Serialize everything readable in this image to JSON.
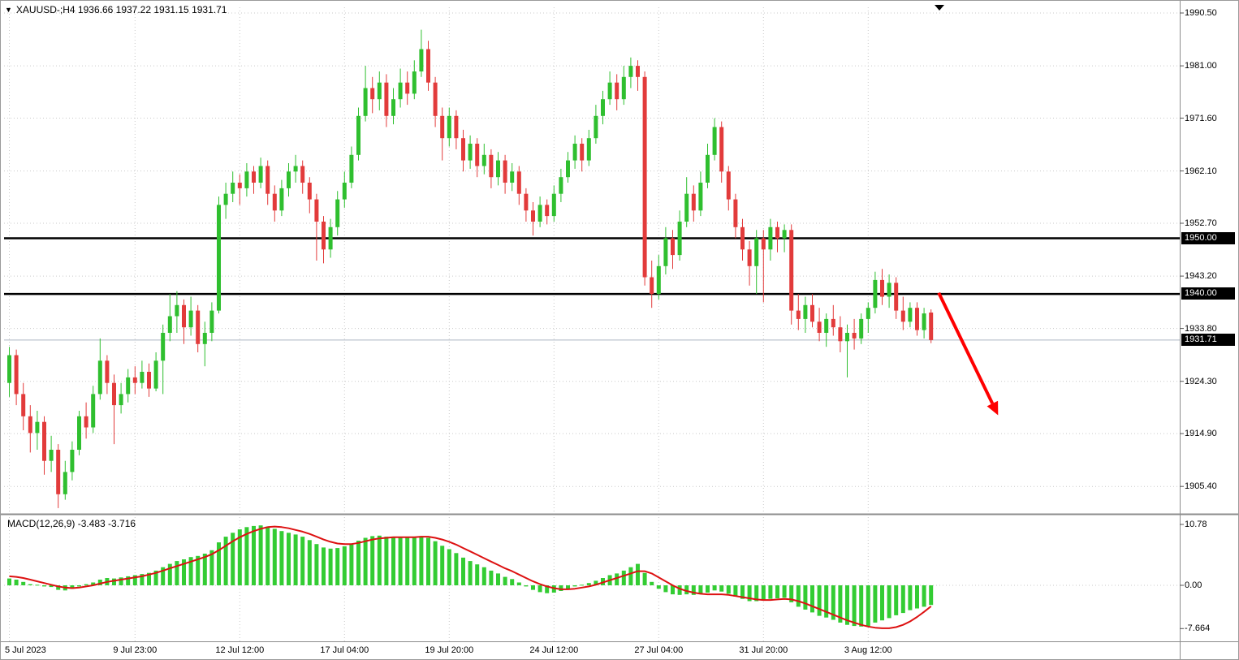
{
  "header": {
    "collapse_icon": "▼",
    "title": "XAUUSD-;H4 1936.66 1937.22 1931.15 1931.71"
  },
  "chart_data": {
    "type": "candlestick",
    "symbol": "XAUUSD-",
    "period": "H4",
    "ohlc_readout": {
      "open": "1936.66",
      "high": "1937.22",
      "low": "1931.15",
      "close": "1931.71"
    },
    "price_axis_ticks": [
      1990.5,
      1981.0,
      1971.6,
      1962.1,
      1952.7,
      1943.2,
      1933.8,
      1924.3,
      1914.9,
      1905.4
    ],
    "support_resistance_lines": [
      1950.0,
      1940.0
    ],
    "current_price": 1931.71,
    "time_axis_labels": [
      {
        "i": 0,
        "t": "5 Jul 2023"
      },
      {
        "i": 18,
        "t": "9 Jul 23:00"
      },
      {
        "i": 33,
        "t": "12 Jul 12:00"
      },
      {
        "i": 48,
        "t": "17 Jul 04:00"
      },
      {
        "i": 63,
        "t": "19 Jul 20:00"
      },
      {
        "i": 78,
        "t": "24 Jul 12:00"
      },
      {
        "i": 93,
        "t": "27 Jul 04:00"
      },
      {
        "i": 108,
        "t": "31 Jul 20:00"
      },
      {
        "i": 123,
        "t": "3 Aug 12:00"
      }
    ],
    "candles": [
      [
        1924,
        1930.5,
        1921.5,
        1929
      ],
      [
        1929,
        1930,
        1920,
        1922
      ],
      [
        1922,
        1924,
        1915.5,
        1918
      ],
      [
        1918,
        1920,
        1911.5,
        1915
      ],
      [
        1915,
        1919,
        1912,
        1917
      ],
      [
        1917,
        1918,
        1907.5,
        1910
      ],
      [
        1910,
        1914.5,
        1908,
        1912
      ],
      [
        1912,
        1913,
        1901.5,
        1904
      ],
      [
        1904,
        1910,
        1903,
        1908
      ],
      [
        1908,
        1913.5,
        1906.5,
        1912
      ],
      [
        1912,
        1919,
        1911,
        1918
      ],
      [
        1918,
        1920.5,
        1914,
        1916
      ],
      [
        1916,
        1923.5,
        1915,
        1922
      ],
      [
        1922,
        1932,
        1921,
        1928
      ],
      [
        1928,
        1929,
        1922,
        1924
      ],
      [
        1924,
        1925.5,
        1913,
        1920
      ],
      [
        1920,
        1924,
        1918.5,
        1922
      ],
      [
        1922,
        1926.5,
        1920.5,
        1925
      ],
      [
        1925,
        1927,
        1922,
        1924
      ],
      [
        1924,
        1928,
        1923,
        1926
      ],
      [
        1926,
        1927.5,
        1921.5,
        1923
      ],
      [
        1923,
        1929.5,
        1922.5,
        1928
      ],
      [
        1928,
        1934.5,
        1922,
        1933
      ],
      [
        1933,
        1940,
        1931.5,
        1936
      ],
      [
        1936,
        1940.5,
        1933,
        1938
      ],
      [
        1938,
        1939,
        1931,
        1934
      ],
      [
        1934,
        1939.5,
        1932.5,
        1937
      ],
      [
        1937,
        1938,
        1929.5,
        1931
      ],
      [
        1931,
        1935,
        1927,
        1933
      ],
      [
        1933,
        1938.5,
        1931.5,
        1937
      ],
      [
        1937,
        1957.5,
        1936.5,
        1956
      ],
      [
        1956,
        1960,
        1953.5,
        1958
      ],
      [
        1958,
        1962,
        1956.5,
        1960
      ],
      [
        1960,
        1961.5,
        1956,
        1959
      ],
      [
        1959,
        1963.5,
        1957.5,
        1962
      ],
      [
        1962,
        1963,
        1958,
        1960
      ],
      [
        1960,
        1964.5,
        1959,
        1963
      ],
      [
        1963,
        1964,
        1956,
        1958
      ],
      [
        1958,
        1959.5,
        1953,
        1955
      ],
      [
        1955,
        1960.5,
        1954,
        1959
      ],
      [
        1959,
        1963.5,
        1957.5,
        1962
      ],
      [
        1962,
        1965,
        1960,
        1963
      ],
      [
        1963,
        1964,
        1958,
        1960
      ],
      [
        1960,
        1961,
        1954.5,
        1957
      ],
      [
        1957,
        1958,
        1946,
        1953
      ],
      [
        1953,
        1954,
        1945.5,
        1948
      ],
      [
        1948,
        1953.5,
        1946.5,
        1952
      ],
      [
        1952,
        1958.5,
        1950.5,
        1957
      ],
      [
        1957,
        1962,
        1955.5,
        1960
      ],
      [
        1960,
        1966.5,
        1959,
        1965
      ],
      [
        1965,
        1973.5,
        1964,
        1972
      ],
      [
        1972,
        1981,
        1971,
        1977
      ],
      [
        1977,
        1979,
        1972.5,
        1975
      ],
      [
        1975,
        1980,
        1973,
        1978
      ],
      [
        1978,
        1979.5,
        1970,
        1972
      ],
      [
        1972,
        1977,
        1970.5,
        1975
      ],
      [
        1975,
        1980.5,
        1973.5,
        1978
      ],
      [
        1978,
        1980,
        1974,
        1976
      ],
      [
        1976,
        1982,
        1975,
        1980
      ],
      [
        1980,
        1987.5,
        1979,
        1984
      ],
      [
        1984,
        1985.5,
        1976.5,
        1978
      ],
      [
        1978,
        1979,
        1970,
        1972
      ],
      [
        1972,
        1973.5,
        1964,
        1968
      ],
      [
        1968,
        1973.5,
        1966.5,
        1972
      ],
      [
        1972,
        1973,
        1966,
        1968
      ],
      [
        1968,
        1969.5,
        1962,
        1964
      ],
      [
        1964,
        1968.5,
        1962.5,
        1967
      ],
      [
        1967,
        1968,
        1961,
        1963
      ],
      [
        1963,
        1967,
        1961.5,
        1965
      ],
      [
        1965,
        1966,
        1959,
        1961
      ],
      [
        1961,
        1965.5,
        1959.5,
        1964
      ],
      [
        1964,
        1965,
        1958,
        1960
      ],
      [
        1960,
        1963.5,
        1958.5,
        1962
      ],
      [
        1962,
        1963,
        1956,
        1958
      ],
      [
        1958,
        1959,
        1953,
        1955
      ],
      [
        1955,
        1956.5,
        1950.5,
        1953
      ],
      [
        1953,
        1957.5,
        1952,
        1956
      ],
      [
        1956,
        1957,
        1952.5,
        1954
      ],
      [
        1954,
        1959.5,
        1953,
        1958
      ],
      [
        1958,
        1962.5,
        1956.5,
        1961
      ],
      [
        1961,
        1965.5,
        1960,
        1964
      ],
      [
        1964,
        1968.5,
        1962.5,
        1967
      ],
      [
        1967,
        1968,
        1962,
        1964
      ],
      [
        1964,
        1969.5,
        1963,
        1968
      ],
      [
        1968,
        1974,
        1967,
        1972
      ],
      [
        1972,
        1976.5,
        1970.5,
        1975
      ],
      [
        1975,
        1980,
        1974,
        1978
      ],
      [
        1978,
        1979.5,
        1973,
        1975
      ],
      [
        1975,
        1981,
        1974,
        1979
      ],
      [
        1979,
        1982.5,
        1977,
        1981
      ],
      [
        1981,
        1982,
        1976.5,
        1979
      ],
      [
        1979,
        1980,
        1941.5,
        1943
      ],
      [
        1943,
        1946,
        1937.5,
        1940
      ],
      [
        1940,
        1947,
        1939,
        1945
      ],
      [
        1945,
        1952,
        1943.5,
        1950
      ],
      [
        1950,
        1951.5,
        1944.5,
        1947
      ],
      [
        1947,
        1955,
        1946,
        1953
      ],
      [
        1953,
        1961,
        1952,
        1958
      ],
      [
        1958,
        1959.5,
        1953,
        1955
      ],
      [
        1955,
        1962,
        1954,
        1960
      ],
      [
        1960,
        1967,
        1959,
        1965
      ],
      [
        1965,
        1971.6,
        1964,
        1970
      ],
      [
        1970,
        1971,
        1960,
        1962
      ],
      [
        1962,
        1963,
        1955,
        1957
      ],
      [
        1957,
        1958,
        1950,
        1952
      ],
      [
        1952,
        1953.5,
        1946,
        1948
      ],
      [
        1948,
        1949.5,
        1941.5,
        1945
      ],
      [
        1945,
        1951.5,
        1940,
        1950
      ],
      [
        1950,
        1951.5,
        1938.5,
        1948
      ],
      [
        1948,
        1953.5,
        1946,
        1952
      ],
      [
        1952,
        1953,
        1947.5,
        1950
      ],
      [
        1950,
        1952.5,
        1947.5,
        1951.5
      ],
      [
        1951.5,
        1952.5,
        1934.5,
        1937
      ],
      [
        1937,
        1940,
        1933.5,
        1935.5
      ],
      [
        1935.5,
        1939.5,
        1933,
        1938
      ],
      [
        1938,
        1940,
        1934,
        1935
      ],
      [
        1935,
        1937.5,
        1931.5,
        1933
      ],
      [
        1933,
        1936.5,
        1930.5,
        1935.5
      ],
      [
        1935.5,
        1938,
        1932.5,
        1934
      ],
      [
        1934,
        1936,
        1929.5,
        1931.5
      ],
      [
        1931.5,
        1934.5,
        1925,
        1933
      ],
      [
        1933,
        1935.5,
        1930,
        1932
      ],
      [
        1932,
        1936.5,
        1931,
        1935.5
      ],
      [
        1935.5,
        1938.5,
        1933,
        1937.5
      ],
      [
        1937.5,
        1944,
        1936.5,
        1942.5
      ],
      [
        1942.5,
        1944.5,
        1938,
        1939.5
      ],
      [
        1939.5,
        1943.5,
        1937.5,
        1942
      ],
      [
        1942,
        1943,
        1935.5,
        1937
      ],
      [
        1937,
        1939.5,
        1933.5,
        1935
      ],
      [
        1935,
        1938.5,
        1934,
        1937.5
      ],
      [
        1937.5,
        1938.5,
        1932.5,
        1933.5
      ],
      [
        1933.5,
        1937.5,
        1932,
        1936.5
      ],
      [
        1936.66,
        1937.22,
        1931.15,
        1931.71
      ]
    ],
    "annotation_arrow": {
      "from": [
        133.4,
        1940.2
      ],
      "to": [
        141.9,
        1918.2
      ],
      "color": "#fe0000"
    },
    "macd": {
      "label": "MACD(12,26,9) -3.483 -3.716",
      "macd_value": -3.483,
      "signal_value": -3.716,
      "axis_ticks": [
        10.78,
        0.0,
        -7.664
      ],
      "axis_tick_labels": [
        "10.78",
        "0.00",
        "-7.664"
      ],
      "histogram": [
        1.2,
        1.0,
        0.6,
        0.2,
        0.1,
        -0.2,
        -0.3,
        -0.8,
        -0.9,
        -0.6,
        -0.2,
        0.2,
        0.5,
        1.0,
        1.3,
        1.2,
        1.4,
        1.6,
        1.8,
        2.0,
        2.2,
        2.6,
        3.2,
        3.8,
        4.3,
        4.6,
        5.0,
        5.2,
        5.6,
        6.2,
        7.6,
        8.6,
        9.3,
        9.9,
        10.3,
        10.5,
        10.6,
        10.4,
        10.0,
        9.6,
        9.3,
        9.0,
        8.6,
        8.0,
        7.3,
        6.7,
        6.5,
        6.6,
        6.9,
        7.3,
        7.9,
        8.4,
        8.7,
        8.8,
        8.6,
        8.5,
        8.6,
        8.5,
        8.5,
        8.7,
        8.4,
        7.8,
        7.0,
        6.4,
        5.7,
        4.9,
        4.3,
        3.7,
        3.2,
        2.6,
        2.1,
        1.5,
        1.1,
        0.5,
        -0.2,
        -0.8,
        -1.2,
        -1.4,
        -1.3,
        -1.0,
        -0.6,
        -0.2,
        0.1,
        0.4,
        0.8,
        1.3,
        1.8,
        2.1,
        2.6,
        3.2,
        3.8,
        2.2,
        0.6,
        -0.6,
        -1.2,
        -1.6,
        -1.7,
        -1.6,
        -1.7,
        -1.6,
        -1.3,
        -0.9,
        -1.1,
        -1.5,
        -2.0,
        -2.4,
        -2.8,
        -2.8,
        -2.7,
        -2.4,
        -2.3,
        -2.2,
        -3.0,
        -3.8,
        -4.3,
        -4.8,
        -5.4,
        -5.7,
        -6.1,
        -6.6,
        -7.0,
        -7.2,
        -7.3,
        -7.2,
        -6.6,
        -6.2,
        -5.8,
        -5.3,
        -4.9,
        -4.4,
        -4.1,
        -3.8,
        -3.483
      ],
      "signal": [
        1.6,
        1.5,
        1.3,
        1.0,
        0.7,
        0.4,
        0.1,
        -0.2,
        -0.4,
        -0.5,
        -0.4,
        -0.2,
        0.0,
        0.3,
        0.6,
        0.8,
        1.0,
        1.2,
        1.4,
        1.6,
        1.9,
        2.2,
        2.6,
        3.0,
        3.4,
        3.8,
        4.2,
        4.6,
        5.0,
        5.5,
        6.2,
        7.0,
        7.8,
        8.5,
        9.1,
        9.6,
        10.0,
        10.3,
        10.4,
        10.3,
        10.1,
        9.8,
        9.5,
        9.1,
        8.6,
        8.1,
        7.7,
        7.4,
        7.3,
        7.3,
        7.5,
        7.8,
        8.1,
        8.3,
        8.4,
        8.5,
        8.5,
        8.5,
        8.5,
        8.6,
        8.6,
        8.4,
        8.1,
        7.7,
        7.2,
        6.6,
        6.0,
        5.4,
        4.8,
        4.2,
        3.6,
        3.0,
        2.5,
        1.9,
        1.3,
        0.7,
        0.2,
        -0.2,
        -0.5,
        -0.7,
        -0.7,
        -0.6,
        -0.4,
        -0.2,
        0.1,
        0.5,
        0.9,
        1.3,
        1.7,
        2.1,
        2.5,
        2.5,
        2.1,
        1.4,
        0.7,
        0.0,
        -0.6,
        -1.0,
        -1.3,
        -1.5,
        -1.6,
        -1.6,
        -1.6,
        -1.7,
        -1.9,
        -2.1,
        -2.3,
        -2.5,
        -2.6,
        -2.6,
        -2.5,
        -2.4,
        -2.5,
        -2.8,
        -3.2,
        -3.7,
        -4.2,
        -4.7,
        -5.2,
        -5.7,
        -6.2,
        -6.6,
        -7.0,
        -7.3,
        -7.5,
        -7.6,
        -7.6,
        -7.4,
        -7.0,
        -6.4,
        -5.6,
        -4.7,
        -3.716
      ]
    },
    "colors": {
      "up_candle": "#2fbf2f",
      "down_candle": "#e23b3b",
      "macd_bar": "#33cc33",
      "signal_line": "#dd1111",
      "grid": "#c9c9c9",
      "level_line": "#000000",
      "axis_box_bg": "#000000",
      "axis_box_text": "#ffffff",
      "current_price_line": "#aab4c0",
      "arrow": "#fe0000",
      "separator": "#8c8c8c",
      "text": "#000000"
    }
  }
}
